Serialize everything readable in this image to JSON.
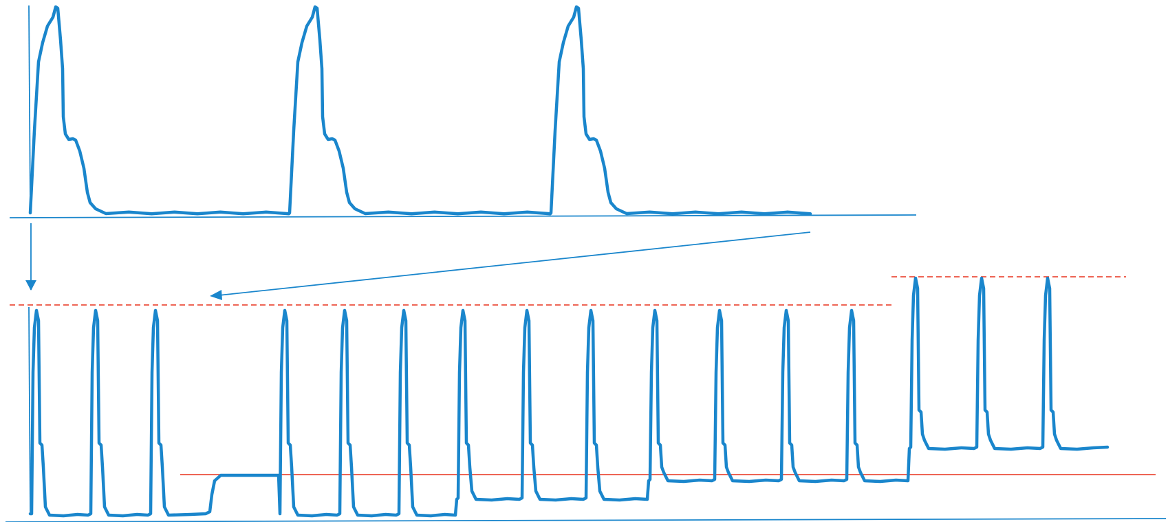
{
  "colors": {
    "trace": "#1a86cc",
    "axis": "#1a86cc",
    "reference": "#e8301c"
  },
  "diagram": {
    "top_panel": {
      "beats": 3,
      "description_shape": "action-potential"
    },
    "bottom_panel": {
      "beats": 16,
      "dashed_reference_lines": 2,
      "solid_reference_lines": 1
    },
    "arrows": 2
  }
}
